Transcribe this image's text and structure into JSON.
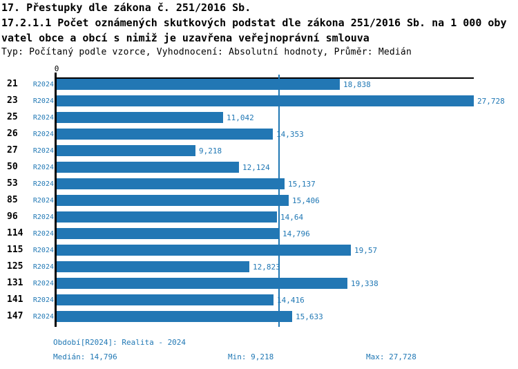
{
  "title": {
    "line1": "17. Přestupky dle zákona č. 251/2016 Sb.",
    "line2": "17.2.1.1 Počet oznámených skutkových podstat dle zákona 251/2016 Sb. na 1 000 oby",
    "line3": "vatel obce a obcí s nimiž je uzavřena veřejnoprávní smlouva",
    "meta": "Typ: Počítaný podle vzorce, Vyhodnocení: Absolutní hodnoty, Průměr: Medián"
  },
  "chart_data": {
    "type": "bar",
    "orientation": "horizontal",
    "title": "17.2.1.1 Počet oznámených skutkových podstat dle zákona 251/2016 Sb. na 1 000 obyvatel obce a obcí s nimiž je uzavřena veřejnoprávní smlouva",
    "series_label": "R2024",
    "categories": [
      "21",
      "23",
      "25",
      "26",
      "27",
      "50",
      "53",
      "85",
      "96",
      "114",
      "115",
      "125",
      "131",
      "141",
      "147"
    ],
    "values": [
      18.838,
      27.728,
      11.042,
      14.353,
      9.218,
      12.124,
      15.137,
      15.406,
      14.64,
      14.796,
      19.57,
      12.823,
      19.338,
      14.416,
      15.633
    ],
    "value_labels": [
      "18,838",
      "27,728",
      "11,042",
      "14,353",
      "9,218",
      "12,124",
      "15,137",
      "15,406",
      "14,64",
      "14,796",
      "19,57",
      "12,823",
      "19,338",
      "14,416",
      "15,633"
    ],
    "x_axis_zero_label": "0",
    "xlim": [
      0,
      27.728
    ],
    "median_value": 14.796,
    "grid": false,
    "legend_position": "none"
  },
  "footer": {
    "period": "Období[R2024]: Realita - 2024",
    "median": "Medián: 14,796",
    "min": "Min: 9,218",
    "max": "Max: 27,728"
  },
  "colors": {
    "bar_blue": "#2277b4",
    "label_blue": "#1f77b4",
    "axis_black": "#000000"
  }
}
